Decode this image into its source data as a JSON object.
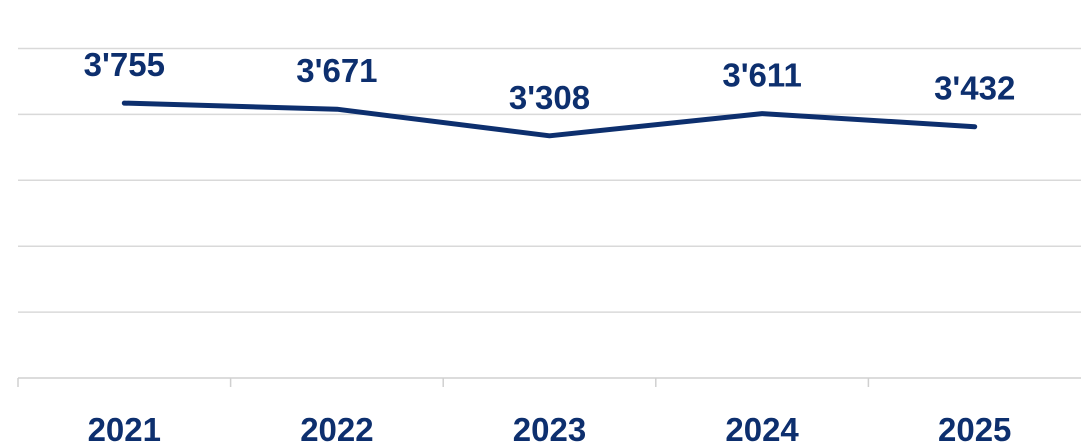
{
  "chart_data": {
    "type": "line",
    "categories": [
      "2021",
      "2022",
      "2023",
      "2024",
      "2025"
    ],
    "series": [
      {
        "values": [
          3755,
          3671,
          3308,
          3611,
          3432
        ],
        "labels": [
          "3'755",
          "3'671",
          "3'308",
          "3'611",
          "3'432"
        ]
      }
    ],
    "title": "",
    "xlabel": "",
    "ylabel": "",
    "ylim": [
      0,
      4500
    ],
    "grid": true,
    "gridlines_y": [
      900,
      1800,
      2700,
      3600
    ],
    "legend": "none",
    "colors": {
      "series": "#0d2f6e",
      "labels": "#0d2f6e",
      "grid": "#d9d9d9"
    }
  }
}
